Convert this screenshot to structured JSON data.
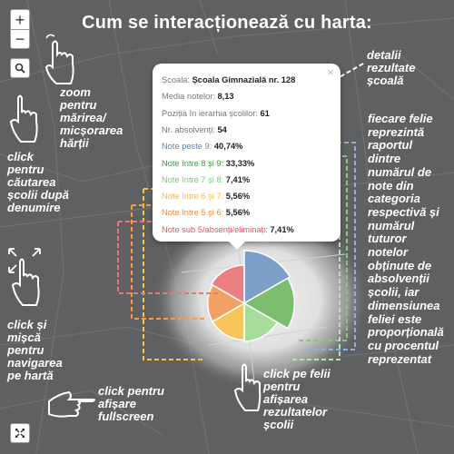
{
  "title": "Cum se interacționează cu harta:",
  "controls": {
    "zoom_in": "+",
    "zoom_out": "−"
  },
  "popup": {
    "close": "×",
    "rows": [
      {
        "key": "Școala: ",
        "value": "Școala Gimnazială nr. 128",
        "color": "#777777"
      },
      {
        "key": "Media notelor: ",
        "value": "8,13",
        "color": "#777777"
      },
      {
        "key": "Poziția în ierarhia școlilor: ",
        "value": "61",
        "color": "#777777"
      },
      {
        "key": "Nr. absolvenți: ",
        "value": "54",
        "color": "#777777"
      },
      {
        "key": "Note peste 9: ",
        "value": "40,74%",
        "color": "#5b84b8"
      },
      {
        "key": "Note între 8 și 9: ",
        "value": "33,33%",
        "color": "#3f9a3f"
      },
      {
        "key": "Note între 7 și 8: ",
        "value": "7,41%",
        "color": "#7cc57c"
      },
      {
        "key": "Note între 6 și 7: ",
        "value": "5,56%",
        "color": "#f2b84b"
      },
      {
        "key": "Note între 5 și 6: ",
        "value": "5,56%",
        "color": "#f08a30"
      },
      {
        "key": "Note sub 5/absenți/eliminați: ",
        "value": "7,41%",
        "color": "#e8515a"
      }
    ]
  },
  "notes": {
    "detail": [
      "detalii",
      "rezultate",
      "școală"
    ],
    "zoom": [
      "zoom",
      "pentru",
      "mărirea/",
      "micșorarea",
      "hărții"
    ],
    "search": [
      "click",
      "pentru",
      "căutarea",
      "școlii după",
      "denumire"
    ],
    "slice": [
      "fiecare felie",
      "reprezintă",
      "raportul",
      "dintre",
      "numărul de",
      "note din",
      "categoria",
      "respectivă și",
      "numărul",
      "tuturor",
      "notelor",
      "obținute de",
      "absolvenții",
      "școlii, iar",
      "dimensiunea",
      "feliei este",
      "proporțională",
      "cu procentul",
      "reprezentat"
    ],
    "drag": [
      "click și",
      "mișcă",
      "pentru",
      "navigarea",
      "pe hartă"
    ],
    "pie_click": [
      "click pe felii",
      "pentru",
      "afișarea",
      "rezultatelor",
      "școlii"
    ],
    "fullscreen": [
      "click pentru",
      "afișare",
      "fullscreen"
    ]
  },
  "icons": {
    "search": "search-icon",
    "fullscreen": "fullscreen-icon",
    "hand": "pointing-hand-icon",
    "move": "move-arrows-icon"
  },
  "chart_data": {
    "type": "pie",
    "categories": [
      "Note peste 9",
      "Note între 8 și 9",
      "Note între 7 și 8",
      "Note între 6 și 7",
      "Note între 5 și 6",
      "Note sub 5/absenți/eliminați"
    ],
    "values": [
      40.74,
      33.33,
      7.41,
      5.56,
      5.56,
      7.41
    ],
    "colors": [
      "#7b9fc8",
      "#7cbd6f",
      "#a6dd9b",
      "#f7c55a",
      "#f2a064",
      "#e97f82"
    ]
  }
}
